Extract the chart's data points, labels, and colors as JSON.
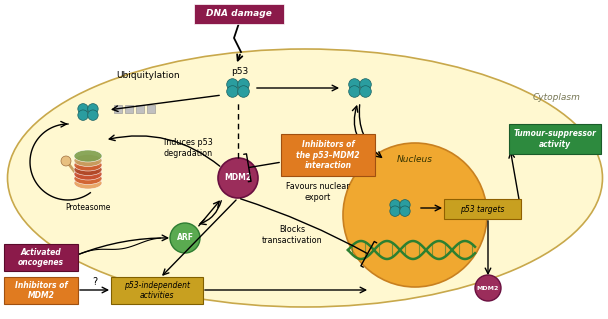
{
  "cell_fc": "#FFF8D0",
  "cell_ec": "#C8A84B",
  "nucleus_fc": "#F0A830",
  "nucleus_ec": "#C88020",
  "dna_damage_fc": "#8B1A4A",
  "dna_damage_text": "DNA damage",
  "orange_box": "#E07B20",
  "green_box": "#2D8A3E",
  "yellow_box": "#C8A020",
  "dark_red_box": "#8B1A4A",
  "mdm2_fc": "#9B2D5B",
  "arf_fc": "#5AAA50",
  "teal": "#2A9D9F",
  "teal_dark": "#1A7070",
  "cytoplasm_text": "Cytoplasm",
  "nucleus_text": "Nucleus",
  "p53_text": "p53",
  "mdm2_text": "MDM2",
  "arf_text": "ARF",
  "ubiq_text": "Ubiquitylation",
  "induces_text": "Induces p53\ndegradation",
  "inhibitors_text": "Inhibitors of\nthe p53–MDM2\ninteraction",
  "favours_text": "Favours nuclear\nexport",
  "blocks_text": "Blocks\ntransactivation",
  "proteasome_text": "Proteasome",
  "activated_text": "Activated\noncogenes",
  "inh_mdm2_text": "Inhibitors of\nMDM2",
  "p53ind_text": "p53-independent\nactivities",
  "tumour_text": "Tumour-suppressor\nactivity",
  "p53targets_text": "p53 targets"
}
